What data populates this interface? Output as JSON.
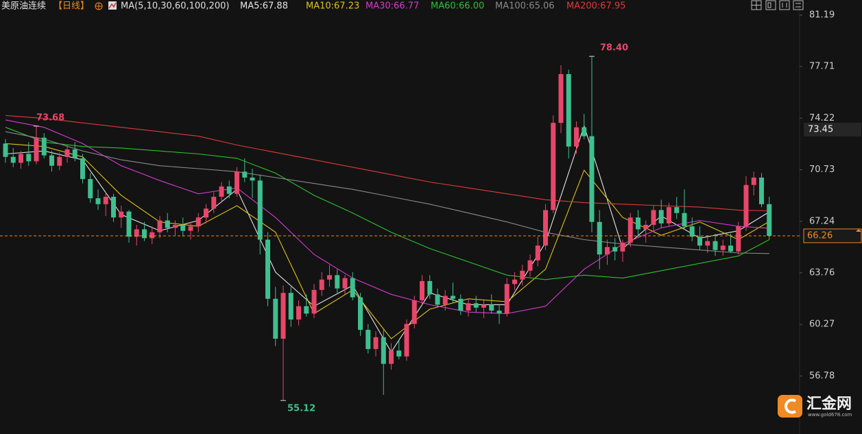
{
  "chart_data": {
    "type": "candlestick",
    "title": "美原油连续",
    "period": "【日线】",
    "indicator": "MA(5,10,30,60,100,200)",
    "ylim": [
      82.21,
      53.69
    ],
    "yticks": [
      81.19,
      77.71,
      74.22,
      70.73,
      67.24,
      63.76,
      60.27,
      56.78
    ],
    "reference_price": 73.45,
    "current_price": 66.26,
    "up_color": "#e8466a",
    "down_color": "#3fbf8f",
    "ohlc": [
      [
        72.5,
        72.8,
        71.2,
        71.6
      ],
      [
        71.6,
        72.2,
        70.9,
        71.2
      ],
      [
        71.2,
        72.0,
        70.8,
        71.8
      ],
      [
        71.8,
        72.6,
        71.0,
        71.3
      ],
      [
        71.3,
        73.68,
        71.1,
        72.9
      ],
      [
        72.9,
        73.2,
        71.5,
        71.7
      ],
      [
        71.7,
        72.0,
        70.6,
        71.0
      ],
      [
        71.0,
        71.9,
        70.7,
        71.6
      ],
      [
        71.6,
        72.4,
        71.2,
        72.1
      ],
      [
        72.1,
        72.6,
        71.3,
        71.5
      ],
      [
        71.5,
        71.8,
        69.8,
        70.1
      ],
      [
        70.1,
        70.5,
        68.5,
        68.8
      ],
      [
        68.8,
        69.4,
        68.0,
        68.4
      ],
      [
        68.4,
        69.2,
        67.6,
        68.9
      ],
      [
        68.9,
        69.1,
        67.2,
        67.5
      ],
      [
        67.5,
        68.3,
        66.8,
        67.9
      ],
      [
        67.9,
        68.0,
        65.8,
        66.2
      ],
      [
        66.2,
        67.0,
        65.6,
        66.7
      ],
      [
        66.7,
        67.2,
        65.9,
        66.1
      ],
      [
        66.1,
        66.9,
        65.7,
        66.5
      ],
      [
        66.5,
        67.6,
        66.1,
        67.3
      ],
      [
        67.3,
        67.8,
        66.5,
        66.8
      ],
      [
        66.8,
        67.3,
        66.3,
        67.0
      ],
      [
        67.0,
        67.5,
        66.2,
        66.6
      ],
      [
        66.6,
        67.2,
        66.0,
        66.9
      ],
      [
        66.9,
        67.8,
        66.5,
        67.5
      ],
      [
        67.5,
        68.4,
        67.1,
        68.1
      ],
      [
        68.1,
        69.2,
        67.8,
        68.9
      ],
      [
        68.9,
        69.9,
        68.5,
        69.6
      ],
      [
        69.6,
        70.0,
        68.8,
        69.1
      ],
      [
        69.1,
        70.9,
        68.9,
        70.6
      ],
      [
        70.6,
        71.5,
        69.9,
        70.2
      ],
      [
        70.2,
        70.8,
        68.8,
        70.0
      ],
      [
        70.0,
        70.4,
        65.0,
        66.0
      ],
      [
        66.0,
        66.5,
        61.5,
        62.0
      ],
      [
        62.0,
        62.8,
        58.8,
        59.3
      ],
      [
        59.3,
        62.9,
        55.12,
        62.4
      ],
      [
        62.4,
        62.8,
        60.1,
        60.6
      ],
      [
        60.6,
        61.9,
        60.2,
        61.5
      ],
      [
        61.5,
        62.3,
        60.8,
        61.0
      ],
      [
        61.0,
        63.0,
        60.7,
        62.6
      ],
      [
        62.6,
        63.8,
        62.2,
        63.3
      ],
      [
        63.3,
        64.3,
        62.8,
        63.6
      ],
      [
        63.6,
        64.0,
        62.4,
        62.7
      ],
      [
        62.7,
        63.6,
        62.3,
        63.4
      ],
      [
        63.4,
        63.8,
        61.9,
        62.1
      ],
      [
        62.1,
        62.4,
        59.5,
        59.9
      ],
      [
        59.9,
        60.3,
        58.3,
        58.6
      ],
      [
        58.6,
        59.8,
        58.1,
        59.4
      ],
      [
        59.4,
        59.9,
        55.5,
        57.6
      ],
      [
        57.6,
        59.0,
        57.2,
        58.5
      ],
      [
        58.5,
        59.2,
        57.9,
        58.1
      ],
      [
        58.1,
        60.6,
        57.8,
        60.3
      ],
      [
        60.3,
        62.2,
        60.0,
        61.9
      ],
      [
        61.9,
        63.6,
        61.6,
        63.2
      ],
      [
        63.2,
        63.6,
        62.0,
        62.3
      ],
      [
        62.3,
        62.7,
        61.4,
        61.6
      ],
      [
        61.6,
        62.6,
        61.2,
        62.2
      ],
      [
        62.2,
        63.1,
        61.7,
        62.0
      ],
      [
        62.0,
        62.3,
        60.9,
        61.2
      ],
      [
        61.2,
        62.0,
        60.8,
        61.7
      ],
      [
        61.7,
        62.2,
        61.1,
        61.4
      ],
      [
        61.4,
        61.9,
        60.7,
        61.6
      ],
      [
        61.6,
        62.3,
        61.0,
        61.2
      ],
      [
        61.2,
        61.6,
        60.3,
        61.0
      ],
      [
        61.0,
        63.4,
        60.8,
        63.0
      ],
      [
        63.0,
        63.8,
        62.6,
        63.3
      ],
      [
        63.3,
        64.3,
        62.9,
        63.9
      ],
      [
        63.9,
        65.0,
        63.5,
        64.6
      ],
      [
        64.6,
        66.2,
        64.2,
        65.6
      ],
      [
        65.6,
        68.4,
        65.3,
        68.0
      ],
      [
        68.0,
        74.4,
        67.8,
        73.9
      ],
      [
        73.9,
        77.8,
        73.2,
        77.2
      ],
      [
        77.2,
        77.5,
        71.5,
        72.3
      ],
      [
        72.3,
        74.0,
        71.8,
        73.6
      ],
      [
        73.6,
        74.5,
        72.8,
        73.0
      ],
      [
        73.0,
        78.4,
        66.5,
        67.2
      ],
      [
        67.2,
        68.0,
        64.0,
        65.0
      ],
      [
        65.0,
        66.0,
        64.3,
        65.5
      ],
      [
        65.5,
        66.1,
        64.6,
        65.2
      ],
      [
        65.2,
        66.0,
        64.5,
        65.8
      ],
      [
        65.8,
        67.8,
        65.5,
        67.5
      ],
      [
        67.5,
        68.0,
        66.2,
        66.7
      ],
      [
        66.7,
        67.3,
        65.8,
        67.0
      ],
      [
        67.0,
        68.3,
        66.6,
        68.0
      ],
      [
        68.0,
        68.7,
        66.8,
        67.1
      ],
      [
        67.1,
        68.5,
        66.9,
        68.2
      ],
      [
        68.2,
        68.9,
        67.4,
        67.8
      ],
      [
        67.8,
        69.4,
        66.7,
        66.9
      ],
      [
        66.9,
        67.5,
        65.9,
        66.2
      ],
      [
        66.2,
        66.9,
        65.3,
        65.6
      ],
      [
        65.6,
        66.3,
        65.1,
        65.9
      ],
      [
        65.9,
        66.4,
        64.9,
        65.3
      ],
      [
        65.3,
        66.0,
        64.9,
        65.6
      ],
      [
        65.6,
        66.4,
        65.1,
        65.2
      ],
      [
        65.2,
        67.2,
        65.0,
        66.9
      ],
      [
        66.9,
        70.3,
        66.6,
        69.7
      ],
      [
        69.7,
        70.6,
        69.0,
        70.2
      ],
      [
        70.2,
        70.5,
        68.2,
        68.4
      ],
      [
        68.4,
        68.9,
        66.0,
        66.26
      ]
    ],
    "annotations": [
      {
        "index": 4,
        "value": 73.68,
        "label": "73.68"
      },
      {
        "index": 76,
        "value": 78.4,
        "label": "78.40"
      },
      {
        "index": 36,
        "value": 55.12,
        "label": "55.12"
      }
    ],
    "series": [
      {
        "name": "MA5:67.88",
        "color": "#e6e6e6",
        "x": [
          0,
          5,
          10,
          15,
          20,
          25,
          30,
          35,
          40,
          45,
          50,
          55,
          60,
          65,
          70,
          75,
          80,
          85,
          90,
          95,
          99
        ],
        "values": [
          71.8,
          72.0,
          71.4,
          67.7,
          66.6,
          67.3,
          69.4,
          63.8,
          61.5,
          62.9,
          58.4,
          62.4,
          61.6,
          61.6,
          65.8,
          73.7,
          65.4,
          67.6,
          66.1,
          66.6,
          67.88
        ]
      },
      {
        "name": "MA10:67.23",
        "color": "#e0c21a",
        "x": [
          0,
          5,
          10,
          15,
          20,
          25,
          30,
          35,
          40,
          45,
          50,
          55,
          60,
          65,
          70,
          75,
          80,
          85,
          90,
          95,
          99
        ],
        "values": [
          72.5,
          72.3,
          71.6,
          69.0,
          67.2,
          66.9,
          68.3,
          66.5,
          61.0,
          62.6,
          59.3,
          61.3,
          62.0,
          61.8,
          64.0,
          70.7,
          67.5,
          66.3,
          67.2,
          66.0,
          67.23
        ]
      },
      {
        "name": "MA30:66.77",
        "color": "#d23cd2",
        "x": [
          0,
          5,
          10,
          15,
          20,
          25,
          30,
          35,
          40,
          45,
          50,
          55,
          60,
          65,
          70,
          75,
          80,
          85,
          90,
          95,
          99
        ],
        "values": [
          74.1,
          73.6,
          72.5,
          71.0,
          70.0,
          69.1,
          69.5,
          67.5,
          65.0,
          63.4,
          62.3,
          61.6,
          61.1,
          61.0,
          61.5,
          64.0,
          65.7,
          66.8,
          67.3,
          66.9,
          66.77
        ]
      },
      {
        "name": "MA60:66.00",
        "color": "#2ec22e",
        "x": [
          0,
          5,
          10,
          15,
          20,
          25,
          30,
          35,
          40,
          45,
          50,
          55,
          60,
          65,
          70,
          75,
          80,
          85,
          90,
          95,
          99
        ],
        "values": [
          73.6,
          72.6,
          72.3,
          72.2,
          72.0,
          71.8,
          71.5,
          70.5,
          69.0,
          67.8,
          66.5,
          65.4,
          64.5,
          63.6,
          63.3,
          63.6,
          63.4,
          63.9,
          64.4,
          64.9,
          66.0
        ]
      },
      {
        "name": "MA100:65.06",
        "color": "#8a8a8a",
        "x": [
          0,
          5,
          10,
          15,
          20,
          25,
          30,
          35,
          40,
          45,
          50,
          55,
          60,
          65,
          70,
          75,
          80,
          85,
          90,
          95,
          99
        ],
        "values": [
          73.3,
          72.8,
          72.0,
          71.4,
          71.0,
          70.8,
          70.6,
          70.2,
          69.8,
          69.4,
          68.9,
          68.4,
          67.8,
          67.2,
          66.5,
          66.0,
          65.7,
          65.5,
          65.3,
          65.1,
          65.06
        ]
      },
      {
        "name": "MA200:67.95",
        "color": "#e03a3a",
        "x": [
          0,
          5,
          10,
          15,
          20,
          25,
          30,
          35,
          40,
          45,
          50,
          55,
          60,
          65,
          70,
          75,
          80,
          85,
          90,
          95,
          99
        ],
        "values": [
          74.4,
          74.2,
          73.9,
          73.6,
          73.3,
          73.0,
          72.4,
          71.9,
          71.4,
          70.9,
          70.4,
          69.9,
          69.5,
          69.1,
          68.7,
          68.5,
          68.4,
          68.3,
          68.2,
          68.0,
          67.95
        ]
      }
    ],
    "watermark": {
      "title": "汇金网",
      "url": "www.gold678.com"
    }
  }
}
